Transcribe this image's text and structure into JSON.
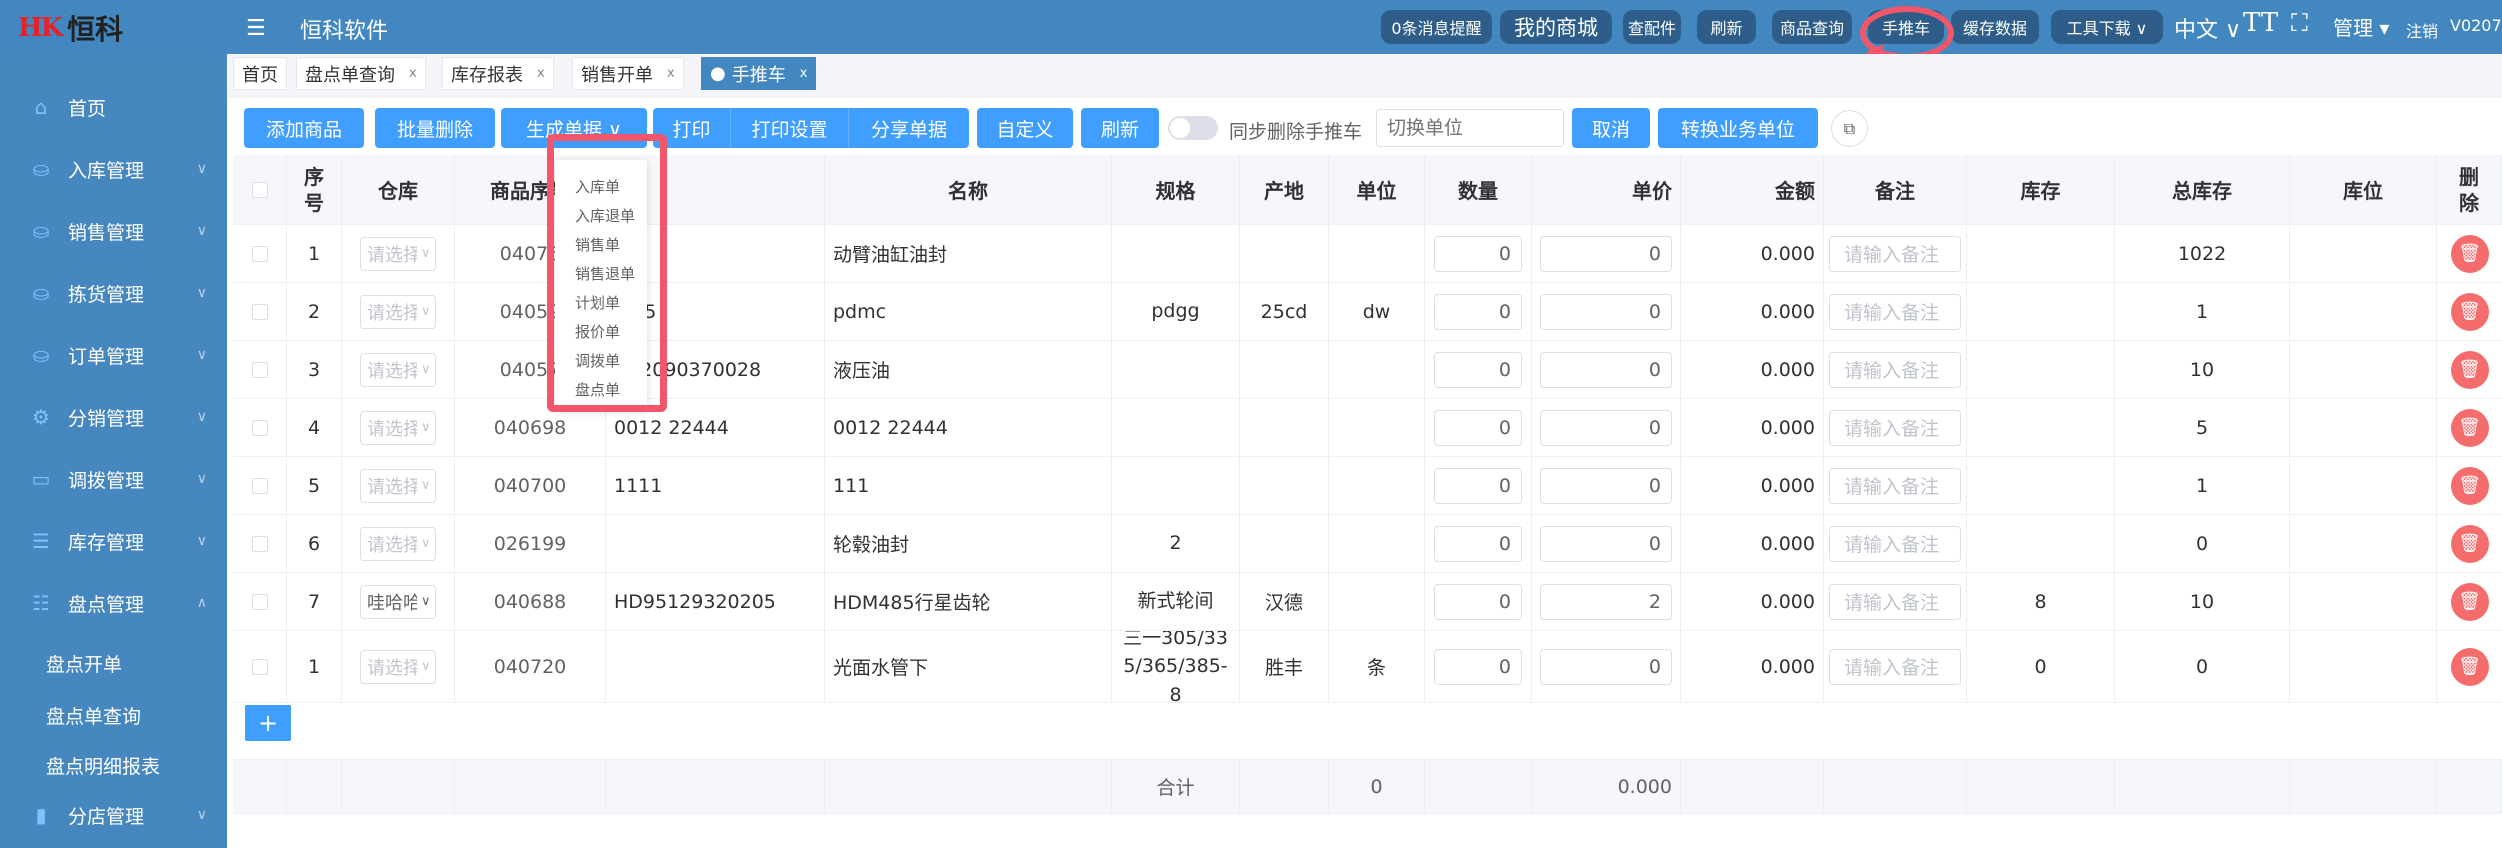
{
  "header": {
    "logo_mark": "HK",
    "logo_text": "恒科",
    "app_title": "恒科软件",
    "buttons": [
      "0条消息提醒",
      "我的商城",
      "查配件",
      "刷新",
      "商品查询",
      "手推车",
      "缓存数据",
      "工具下载 ∨"
    ],
    "lang": "中文 ∨",
    "font_icon": "TT",
    "admin": "管理 ▾",
    "logout": "注销",
    "version": "V0207"
  },
  "sidebar": {
    "items": [
      {
        "label": "首页",
        "icon": "home"
      },
      {
        "label": "入库管理",
        "icon": "bag-in"
      },
      {
        "label": "销售管理",
        "icon": "bag-out"
      },
      {
        "label": "拣货管理",
        "icon": "bag-out"
      },
      {
        "label": "订单管理",
        "icon": "bag-out"
      },
      {
        "label": "分销管理",
        "icon": "gear"
      },
      {
        "label": "调拨管理",
        "icon": "transfer"
      },
      {
        "label": "库存管理",
        "icon": "database"
      },
      {
        "label": "盘点管理",
        "icon": "document"
      }
    ],
    "sub_items": [
      "盘点开单",
      "盘点单查询",
      "盘点明细报表"
    ],
    "last_item": {
      "label": "分店管理",
      "icon": "bar-chart"
    }
  },
  "tabs": [
    {
      "label": "首页"
    },
    {
      "label": "盘点单查询"
    },
    {
      "label": "库存报表"
    },
    {
      "label": "销售开单"
    },
    {
      "label": "手推车",
      "active": true
    }
  ],
  "toolbar": {
    "add": "添加商品",
    "batch_delete": "批量删除",
    "generate": "生成单据 ∨",
    "print": "打印",
    "print_settings": "打印设置",
    "share": "分享单据",
    "custom": "自定义",
    "refresh": "刷新",
    "sync_delete_label": "同步删除手推车",
    "sync_delete_on": false,
    "unit_placeholder": "切换单位",
    "cancel": "取消",
    "convert": "转换业务单位"
  },
  "generate_menu": [
    "入库单",
    "入库退单",
    "销售单",
    "销售退单",
    "计划单",
    "报价单",
    "调拨单",
    "盘点单"
  ],
  "table": {
    "headers": [
      "",
      "序号",
      "仓库",
      "商品序号",
      "",
      "名称",
      "规格",
      "产地",
      "单位",
      "数量",
      "单价",
      "金额",
      "备注",
      "库存",
      "总库存",
      "库位",
      "删除"
    ],
    "rows": [
      {
        "no": "1",
        "wh": "请选择",
        "sku": "04076",
        "code": "76",
        "name": "动臂油缸油封",
        "spec": "",
        "origin": "",
        "unit": "",
        "qty": "0",
        "price": "0",
        "amount": "0.000",
        "note": "请输入备注",
        "stock": "",
        "total": "1022",
        "loc": ""
      },
      {
        "no": "2",
        "wh": "请选择",
        "sku": "04059",
        "code": "q 45",
        "name": "pdmc",
        "spec": "pdgg",
        "origin": "25cd",
        "unit": "dw",
        "qty": "0",
        "price": "0",
        "amount": "0.000",
        "note": "请输入备注",
        "stock": "",
        "total": "1",
        "loc": ""
      },
      {
        "no": "3",
        "wh": "请选择",
        "sku": "04057",
        "code": "VR2090370028",
        "name": "液压油",
        "spec": "",
        "origin": "",
        "unit": "",
        "qty": "0",
        "price": "0",
        "amount": "0.000",
        "note": "请输入备注",
        "stock": "",
        "total": "10",
        "loc": ""
      },
      {
        "no": "4",
        "wh": "请选择",
        "sku": "040698",
        "code": "0012 22444",
        "name": "0012 22444",
        "spec": "",
        "origin": "",
        "unit": "",
        "qty": "0",
        "price": "0",
        "amount": "0.000",
        "note": "请输入备注",
        "stock": "",
        "total": "5",
        "loc": ""
      },
      {
        "no": "5",
        "wh": "请选择",
        "sku": "040700",
        "code": "1111",
        "name": "111",
        "spec": "",
        "origin": "",
        "unit": "",
        "qty": "0",
        "price": "0",
        "amount": "0.000",
        "note": "请输入备注",
        "stock": "",
        "total": "1",
        "loc": ""
      },
      {
        "no": "6",
        "wh": "请选择",
        "sku": "026199",
        "code": "",
        "name": "轮毂油封",
        "spec": "2",
        "origin": "",
        "unit": "",
        "qty": "0",
        "price": "0",
        "amount": "0.000",
        "note": "请输入备注",
        "stock": "",
        "total": "0",
        "loc": ""
      },
      {
        "no": "7",
        "wh": "哇哈哈",
        "sku": "040688",
        "code": "HD95129320205",
        "name": "HDM485行星齿轮",
        "spec": "新式轮间",
        "origin": "汉德",
        "unit": "",
        "qty": "0",
        "price": "2",
        "amount": "0.000",
        "note": "请输入备注",
        "stock": "8",
        "total": "10",
        "loc": ""
      },
      {
        "no": "1",
        "wh": "请选择",
        "sku": "040720",
        "code": "",
        "name": "光面水管下",
        "spec": "三一305/335/365/385-8",
        "origin": "胜丰",
        "unit": "条",
        "qty": "0",
        "price": "0",
        "amount": "0.000",
        "note": "请输入备注",
        "stock": "0",
        "total": "0",
        "loc": ""
      }
    ],
    "add_row": "+",
    "footer": {
      "label": "合计",
      "unit_total": "0",
      "price_total": "0.000"
    }
  },
  "colors": {
    "header": "#4287bf",
    "sidebar": "#4587be",
    "primary": "#409eff",
    "danger": "#f56c6c",
    "highlight": "#f2566b"
  }
}
